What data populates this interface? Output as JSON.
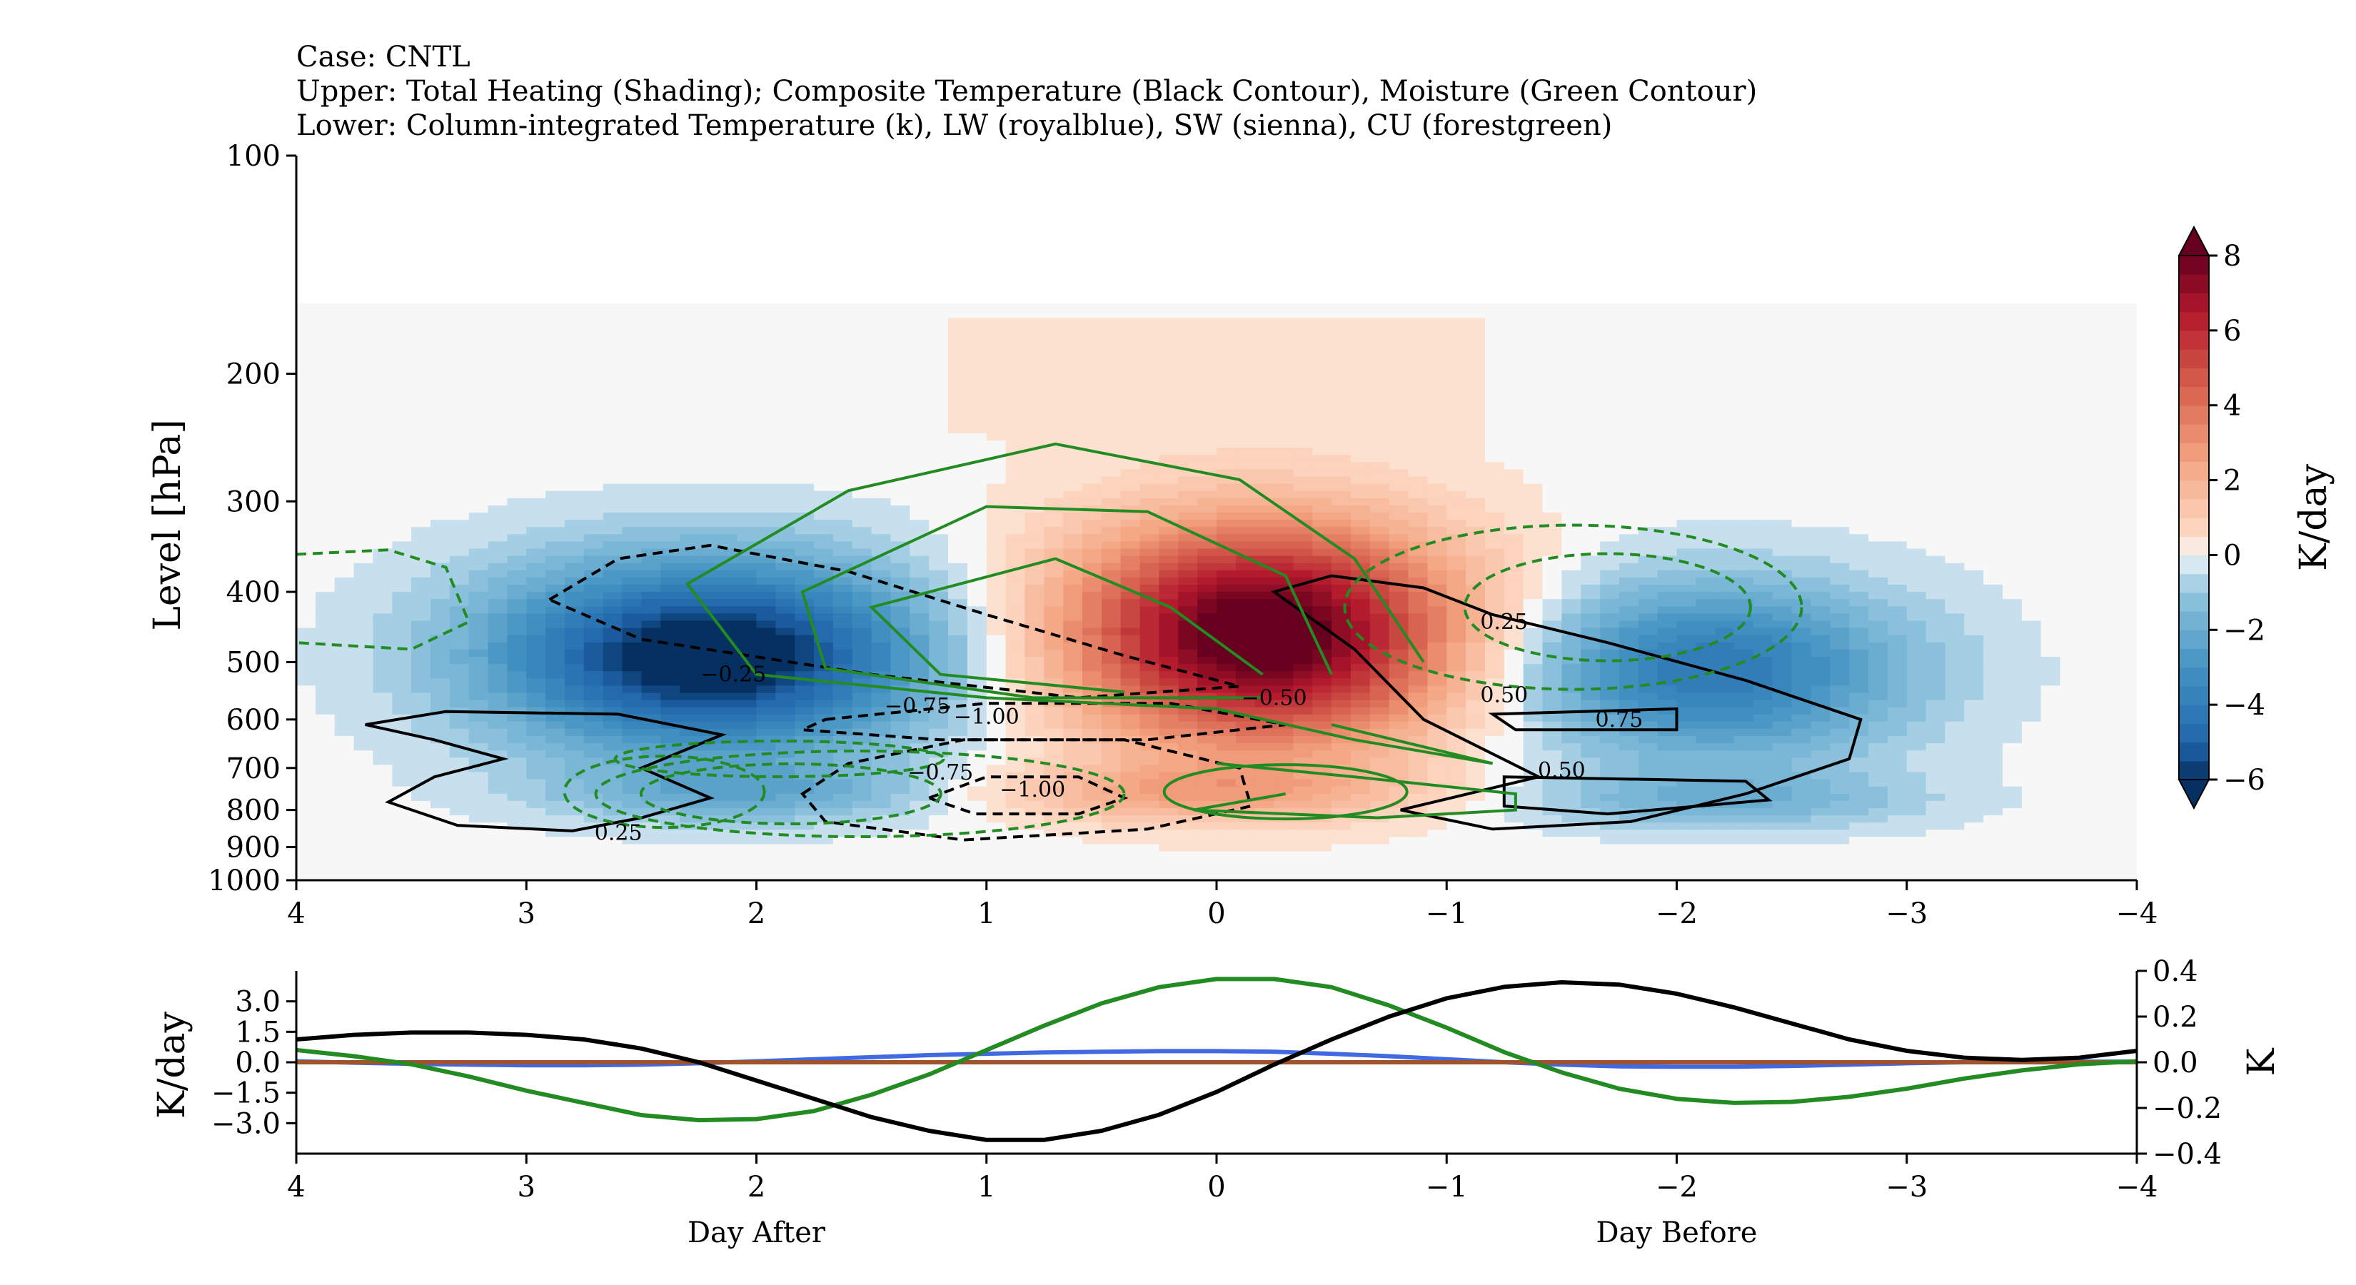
{
  "titles": {
    "case": "Case: CNTL",
    "upper": "Upper: Total Heating (Shading); Composite Temperature (Black Contour), Moisture (Green Contour)",
    "lower": "Lower: Column-integrated Temperature (k), LW (royalblue), SW (sienna), CU (forestgreen)"
  },
  "chart_data": [
    {
      "type": "heatmap",
      "description_free": true,
      "ylabel": "Level [hPa]",
      "y_scale": "log",
      "ylim": [
        1000,
        100
      ],
      "xlim": [
        4,
        -4
      ],
      "x_ticks": [
        "4",
        "3",
        "2",
        "1",
        "0",
        "−1",
        "−2",
        "−3",
        "−4"
      ],
      "y_ticks": [
        "100",
        "200",
        "300",
        "400",
        "500",
        "600",
        "700",
        "800",
        "900",
        "1000"
      ],
      "colorbar": {
        "label": "K/day",
        "cmap": "RdBu_r",
        "range": [
          -6,
          8
        ],
        "ticks": [
          "8",
          "6",
          "4",
          "2",
          "0",
          "−2",
          "−4",
          "−6"
        ],
        "extend": "both"
      },
      "heating_features": [
        {
          "x": 0.0,
          "p": 470,
          "value": 8.0
        },
        {
          "x": -0.3,
          "p": 480,
          "value": 8.0
        },
        {
          "x": 2.2,
          "p": 500,
          "value": -6.0
        },
        {
          "x": -2.1,
          "p": 530,
          "value": -4.0
        },
        {
          "x": 0.1,
          "p": 760,
          "value": 1.5
        },
        {
          "x": 2.0,
          "p": 760,
          "value": -1.5
        },
        {
          "x": -2.2,
          "p": 780,
          "value": -1.5
        }
      ],
      "contour_labels": [
        {
          "text": "0.25",
          "x": 2.6,
          "p": 860,
          "color": "black"
        },
        {
          "text": "−0.25",
          "x": 2.1,
          "p": 520,
          "color": "black"
        },
        {
          "text": "−0.75",
          "x": 1.3,
          "p": 575,
          "color": "black"
        },
        {
          "text": "−1.00",
          "x": 1.0,
          "p": 595,
          "color": "black"
        },
        {
          "text": "−0.50",
          "x": -0.25,
          "p": 560,
          "color": "black"
        },
        {
          "text": "−0.75",
          "x": 1.2,
          "p": 710,
          "color": "black"
        },
        {
          "text": "−1.00",
          "x": 0.8,
          "p": 750,
          "color": "black"
        },
        {
          "text": "0.25",
          "x": -1.25,
          "p": 440,
          "color": "black"
        },
        {
          "text": "0.50",
          "x": -1.25,
          "p": 555,
          "color": "black"
        },
        {
          "text": "0.75",
          "x": -1.75,
          "p": 600,
          "color": "black"
        },
        {
          "text": "0.50",
          "x": -1.5,
          "p": 705,
          "color": "black"
        }
      ]
    },
    {
      "type": "line",
      "ylabel": "K/day",
      "ylabel_right": "K",
      "xlabel_left": "Day After",
      "xlabel_right": "Day Before",
      "xlim": [
        4,
        -4
      ],
      "ylim": [
        -4.5,
        4.5
      ],
      "ylim_right": [
        -0.4,
        0.4
      ],
      "x_ticks": [
        "4",
        "3",
        "2",
        "1",
        "0",
        "−1",
        "−2",
        "−3",
        "−4"
      ],
      "y_ticks": [
        "3.0",
        "1.5",
        "0.0",
        "−1.5",
        "−3.0"
      ],
      "y_ticks_right": [
        "0.4",
        "0.2",
        "0.0",
        "−0.2",
        "−0.4"
      ],
      "x": [
        4.0,
        3.75,
        3.5,
        3.25,
        3.0,
        2.75,
        2.5,
        2.25,
        2.0,
        1.75,
        1.5,
        1.25,
        1.0,
        0.75,
        0.5,
        0.25,
        0.0,
        -0.25,
        -0.5,
        -0.75,
        -1.0,
        -1.25,
        -1.5,
        -1.75,
        -2.0,
        -2.25,
        -2.5,
        -2.75,
        -3.0,
        -3.25,
        -3.5,
        -3.75,
        -4.0
      ],
      "series": [
        {
          "name": "LW (royalblue)",
          "color": "#4169e1",
          "axis": "left",
          "values": [
            0.05,
            -0.02,
            -0.08,
            -0.12,
            -0.15,
            -0.15,
            -0.12,
            -0.05,
            0.05,
            0.15,
            0.25,
            0.35,
            0.42,
            0.48,
            0.52,
            0.55,
            0.55,
            0.52,
            0.42,
            0.3,
            0.15,
            0.0,
            -0.12,
            -0.2,
            -0.22,
            -0.22,
            -0.18,
            -0.12,
            -0.05,
            0.0,
            0.02,
            0.03,
            0.03
          ]
        },
        {
          "name": "SW (sienna)",
          "color": "#a0522d",
          "axis": "left",
          "values": [
            0.0,
            0.0,
            0.0,
            0.0,
            0.0,
            0.0,
            0.0,
            0.0,
            0.0,
            0.0,
            0.0,
            0.0,
            0.0,
            0.0,
            0.0,
            0.0,
            0.0,
            0.0,
            0.0,
            0.0,
            0.0,
            0.0,
            0.0,
            0.0,
            0.0,
            0.0,
            0.0,
            0.0,
            0.0,
            0.0,
            0.0,
            0.0,
            0.0
          ]
        },
        {
          "name": "CU (forestgreen)",
          "color": "#228b22",
          "axis": "left",
          "values": [
            0.6,
            0.3,
            -0.1,
            -0.7,
            -1.4,
            -2.0,
            -2.6,
            -2.85,
            -2.8,
            -2.4,
            -1.6,
            -0.6,
            0.6,
            1.8,
            2.9,
            3.7,
            4.1,
            4.1,
            3.7,
            2.8,
            1.7,
            0.5,
            -0.5,
            -1.3,
            -1.8,
            -2.0,
            -1.95,
            -1.7,
            -1.3,
            -0.8,
            -0.4,
            -0.1,
            0.05
          ]
        },
        {
          "name": "Column-integrated Temperature (k)",
          "color": "#000000",
          "axis": "right",
          "values": [
            0.1,
            0.12,
            0.13,
            0.13,
            0.12,
            0.1,
            0.06,
            0.0,
            -0.08,
            -0.16,
            -0.24,
            -0.3,
            -0.34,
            -0.34,
            -0.3,
            -0.23,
            -0.13,
            -0.01,
            0.1,
            0.2,
            0.28,
            0.33,
            0.35,
            0.34,
            0.3,
            0.24,
            0.17,
            0.1,
            0.05,
            0.02,
            0.01,
            0.02,
            0.05
          ]
        }
      ]
    }
  ]
}
